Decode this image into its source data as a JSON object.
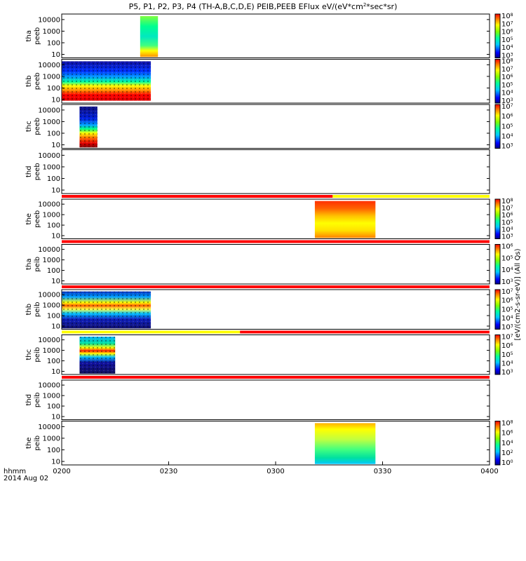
{
  "chart_data": {
    "type": "heatmap",
    "title": "P5, P1, P2, P3, P4 (TH-A,B,C,D,E) PEIB,PEEB EFlux eV/(eV*cm",
    "title_sup": "2",
    "title_end": "*sec*sr)",
    "ylim": [
      5,
      30000
    ],
    "y_ticks": [
      "10000",
      "1000",
      "100",
      "10"
    ],
    "x_ticks": [
      "0200",
      "0230",
      "0300",
      "0330",
      "0400"
    ],
    "x_tick_minutes": [
      0,
      30,
      60,
      90,
      120
    ],
    "x_range_minutes": [
      0,
      120
    ],
    "xlabel_line1": "hhmm",
    "xlabel_line2": "2014 Aug 02",
    "colorbar_label": "[eV/(cm2-s-sr-eV)] (All Qs)",
    "status_colors": {
      "red": "#ff0000",
      "yellow": "#ffff00"
    },
    "panels": [
      {
        "probe": "tha",
        "instrument": "peeb",
        "blocks": [
          {
            "start": 22,
            "end": 27,
            "fill_top": 20000,
            "fill_bottom": 6,
            "pattern": "tha_e"
          }
        ],
        "colorbar_ticks": [
          "10",
          "10",
          "10",
          "10",
          "10",
          "10"
        ],
        "colorbar_exps": [
          "8",
          "7",
          "6",
          "5",
          "4",
          "3"
        ],
        "status_bar": null
      },
      {
        "probe": "thb",
        "instrument": "peeb",
        "blocks": [
          {
            "start": 0,
            "end": 25,
            "fill_top": 20000,
            "fill_bottom": 8,
            "pattern": "thb_e"
          }
        ],
        "colorbar_ticks": [
          "10",
          "10",
          "10",
          "10",
          "10",
          "10"
        ],
        "colorbar_exps": [
          "8",
          "7",
          "6",
          "5",
          "4",
          "3"
        ],
        "status_bar": null
      },
      {
        "probe": "thc",
        "instrument": "peeb",
        "blocks": [
          {
            "start": 5,
            "end": 10,
            "fill_top": 20000,
            "fill_bottom": 6,
            "pattern": "thc_e"
          }
        ],
        "colorbar_ticks": [
          "10",
          "10",
          "10",
          "10",
          "10"
        ],
        "colorbar_exps": [
          "7",
          "6",
          "5",
          "4",
          "3"
        ],
        "status_bar": null
      },
      {
        "probe": "thd",
        "instrument": "peeb",
        "blocks": [],
        "colorbar_ticks": [],
        "colorbar_exps": [],
        "status_bar": null
      },
      {
        "probe": "the",
        "instrument": "peeb",
        "blocks": [
          {
            "start": 71,
            "end": 88,
            "fill_top": 20000,
            "fill_bottom": 6,
            "pattern": "the_e"
          }
        ],
        "colorbar_ticks": [
          "10",
          "10",
          "10",
          "10",
          "10",
          "10"
        ],
        "colorbar_exps": [
          "8",
          "7",
          "6",
          "5",
          "4",
          "3"
        ],
        "status_bar": [
          {
            "start": 0,
            "end": 76,
            "color": "red"
          },
          {
            "start": 76,
            "end": 120,
            "color": "yellow"
          }
        ]
      },
      {
        "probe": "tha",
        "instrument": "peib",
        "blocks": [],
        "colorbar_ticks": [
          "10",
          "10",
          "10",
          "10"
        ],
        "colorbar_exps": [
          "6",
          "5",
          "4",
          "3"
        ],
        "status_bar": [
          {
            "start": 0,
            "end": 120,
            "color": "red"
          }
        ]
      },
      {
        "probe": "thb",
        "instrument": "peib",
        "blocks": [
          {
            "start": 0,
            "end": 25,
            "fill_top": 20000,
            "fill_bottom": 6,
            "pattern": "thb_i"
          }
        ],
        "colorbar_ticks": [
          "10",
          "10",
          "10",
          "10",
          "10"
        ],
        "colorbar_exps": [
          "7",
          "6",
          "5",
          "4",
          "3"
        ],
        "status_bar": [
          {
            "start": 0,
            "end": 120,
            "color": "red"
          }
        ]
      },
      {
        "probe": "thc",
        "instrument": "peib",
        "blocks": [
          {
            "start": 5,
            "end": 15,
            "fill_top": 20000,
            "fill_bottom": 6,
            "pattern": "thc_i"
          }
        ],
        "colorbar_ticks": [
          "10",
          "10",
          "10",
          "10",
          "10"
        ],
        "colorbar_exps": [
          "7",
          "6",
          "5",
          "4",
          "3"
        ],
        "status_bar": [
          {
            "start": 0,
            "end": 50,
            "color": "yellow"
          },
          {
            "start": 50,
            "end": 120,
            "color": "red"
          }
        ]
      },
      {
        "probe": "thd",
        "instrument": "peib",
        "blocks": [],
        "colorbar_ticks": [],
        "colorbar_exps": [],
        "status_bar": [
          {
            "start": 0,
            "end": 120,
            "color": "red"
          }
        ]
      },
      {
        "probe": "the",
        "instrument": "peib",
        "blocks": [
          {
            "start": 71,
            "end": 88,
            "fill_top": 20000,
            "fill_bottom": 6,
            "pattern": "the_i"
          }
        ],
        "colorbar_ticks": [
          "10",
          "10",
          "10",
          "10",
          "10"
        ],
        "colorbar_exps": [
          "8",
          "6",
          "4",
          "2",
          "0"
        ],
        "status_bar": null
      }
    ]
  }
}
